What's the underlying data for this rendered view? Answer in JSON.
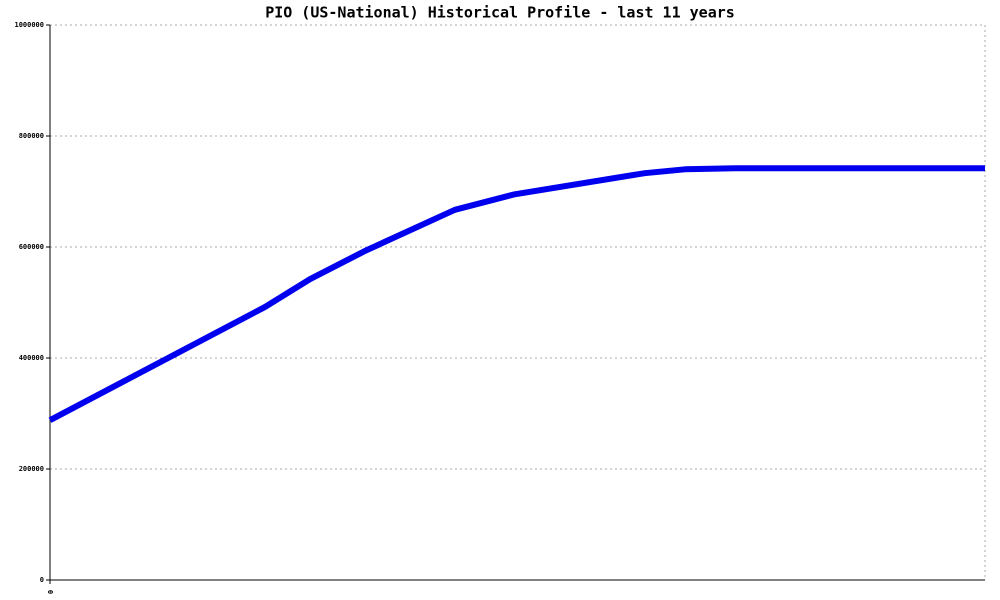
{
  "chart_data": {
    "type": "line",
    "title": "PIO (US-National) Historical Profile - last 11 years",
    "x": [
      0,
      23,
      27.8,
      33.7,
      43.3,
      49.7,
      63.6,
      67.9,
      73.3,
      100
    ],
    "series": [
      {
        "color": "#0000ee",
        "values": [
          288000,
          492000,
          542000,
          593000,
          667000,
          695000,
          733000,
          740000,
          742000,
          742000
        ]
      }
    ],
    "xlim": [
      0,
      100
    ],
    "xticks": [
      0
    ],
    "ylim": [
      0,
      1000000
    ],
    "yticks": [
      0,
      200000,
      400000,
      600000,
      800000,
      1000000
    ],
    "grid": true
  }
}
